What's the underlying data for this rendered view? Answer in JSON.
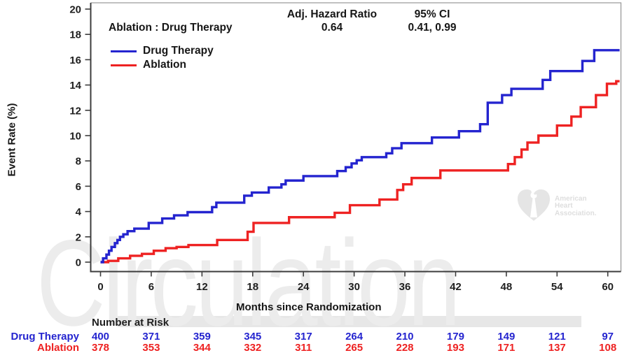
{
  "header": {
    "comparison_label": "Ablation : Drug Therapy",
    "hr_label": "Adj. Hazard Ratio",
    "hr_value": "0.64",
    "ci_label": "95% CI",
    "ci_value": "0.41, 0.99"
  },
  "legend": [
    {
      "label": "Drug Therapy",
      "color": "#2424cf"
    },
    {
      "label": "Ablation",
      "color": "#ee2222"
    }
  ],
  "watermark": {
    "text": "Circulation",
    "logo_lines": [
      "American",
      "Heart",
      "Association."
    ]
  },
  "colors": {
    "drug_therapy": "#2424cf",
    "ablation": "#ee2222",
    "axis_dark": "#3c3c3c",
    "axis_light": "#9a9a9a",
    "text": "#1f1f1f",
    "watermark_gray": "#ececec"
  },
  "chart_data": {
    "type": "line",
    "subtype": "step",
    "xlabel": "Months since Randomization",
    "ylabel": "Event Rate (%)",
    "xlim": [
      0,
      60
    ],
    "ylim": [
      0,
      20
    ],
    "xticks": [
      0,
      6,
      12,
      18,
      24,
      30,
      36,
      42,
      48,
      54,
      60
    ],
    "yticks": [
      0,
      2,
      4,
      6,
      8,
      10,
      12,
      14,
      16,
      18,
      20
    ],
    "grid": false,
    "legend_position": "top-left",
    "series": [
      {
        "name": "Ablation",
        "color": "#ee2222",
        "end_month": 61.4,
        "steps": [
          [
            0,
            0
          ],
          [
            0.9,
            0.1
          ],
          [
            2.1,
            0.3
          ],
          [
            3.5,
            0.5
          ],
          [
            4.9,
            0.65
          ],
          [
            6.3,
            0.9
          ],
          [
            7.7,
            1.1
          ],
          [
            9.0,
            1.2
          ],
          [
            10.4,
            1.35
          ],
          [
            13.8,
            1.75
          ],
          [
            17.4,
            2.4
          ],
          [
            18.1,
            3.1
          ],
          [
            22.3,
            3.55
          ],
          [
            27.7,
            3.9
          ],
          [
            29.5,
            4.5
          ],
          [
            33.0,
            4.95
          ],
          [
            35.1,
            5.7
          ],
          [
            35.8,
            6.15
          ],
          [
            36.8,
            6.65
          ],
          [
            40.2,
            7.25
          ],
          [
            48.2,
            7.75
          ],
          [
            49.0,
            8.3
          ],
          [
            49.8,
            8.9
          ],
          [
            50.5,
            9.45
          ],
          [
            51.8,
            10.0
          ],
          [
            54.0,
            10.8
          ],
          [
            55.7,
            11.5
          ],
          [
            56.8,
            12.25
          ],
          [
            58.6,
            13.2
          ],
          [
            59.9,
            14.1
          ],
          [
            61.0,
            14.3
          ]
        ]
      },
      {
        "name": "Drug Therapy",
        "color": "#2424cf",
        "end_month": 61.4,
        "steps": [
          [
            0,
            0
          ],
          [
            0.3,
            0.3
          ],
          [
            0.7,
            0.6
          ],
          [
            1.0,
            0.9
          ],
          [
            1.3,
            1.2
          ],
          [
            1.7,
            1.5
          ],
          [
            2.0,
            1.75
          ],
          [
            2.3,
            2.0
          ],
          [
            2.7,
            2.2
          ],
          [
            3.2,
            2.45
          ],
          [
            4.0,
            2.65
          ],
          [
            5.7,
            3.1
          ],
          [
            7.3,
            3.45
          ],
          [
            8.7,
            3.7
          ],
          [
            10.3,
            3.95
          ],
          [
            13.2,
            4.35
          ],
          [
            13.7,
            4.7
          ],
          [
            17.0,
            5.25
          ],
          [
            17.9,
            5.5
          ],
          [
            19.9,
            5.9
          ],
          [
            21.4,
            6.15
          ],
          [
            21.9,
            6.45
          ],
          [
            24.0,
            6.8
          ],
          [
            28.0,
            7.2
          ],
          [
            29.0,
            7.5
          ],
          [
            29.7,
            7.8
          ],
          [
            30.3,
            8.05
          ],
          [
            30.9,
            8.3
          ],
          [
            33.8,
            8.6
          ],
          [
            34.5,
            9.0
          ],
          [
            35.6,
            9.4
          ],
          [
            39.2,
            9.85
          ],
          [
            42.4,
            10.35
          ],
          [
            44.9,
            10.9
          ],
          [
            45.8,
            12.6
          ],
          [
            47.5,
            13.2
          ],
          [
            48.6,
            13.7
          ],
          [
            52.3,
            14.4
          ],
          [
            53.2,
            15.1
          ],
          [
            57.0,
            15.9
          ],
          [
            58.4,
            16.75
          ]
        ]
      }
    ]
  },
  "risk_table": {
    "title": "Number at Risk",
    "months": [
      0,
      6,
      12,
      18,
      24,
      30,
      36,
      42,
      48,
      54,
      60
    ],
    "rows": [
      {
        "label": "Drug Therapy",
        "color": "#2424cf",
        "values": [
          "400",
          "371",
          "359",
          "345",
          "317",
          "264",
          "210",
          "179",
          "149",
          "121",
          "97"
        ]
      },
      {
        "label": "Ablation",
        "color": "#ee2222",
        "values": [
          "378",
          "353",
          "344",
          "332",
          "311",
          "265",
          "228",
          "193",
          "171",
          "137",
          "108"
        ]
      }
    ]
  }
}
